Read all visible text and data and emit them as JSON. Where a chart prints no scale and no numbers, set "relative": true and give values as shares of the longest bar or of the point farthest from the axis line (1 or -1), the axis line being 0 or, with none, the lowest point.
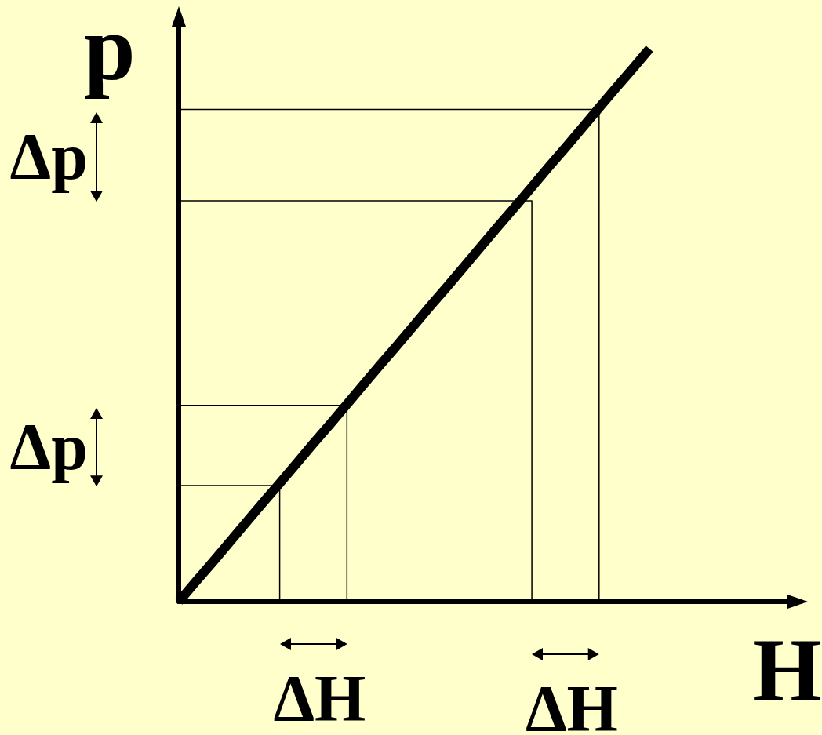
{
  "chart_data": {
    "type": "line",
    "relative": true,
    "xlabel": "H",
    "ylabel": "p",
    "marker": "none",
    "categories": [
      null,
      null,
      null,
      null,
      null,
      null,
      null,
      null,
      null,
      null,
      null,
      null,
      null,
      null,
      null,
      null,
      null,
      null,
      null,
      null,
      null,
      null,
      null,
      null,
      null,
      null,
      null,
      null,
      null,
      null,
      null,
      null,
      null,
      null,
      null,
      null,
      null,
      null
    ],
    "series": [
      {
        "color": "#000000",
        "values": [
          0,
          0.036,
          0.071,
          0.107,
          0.143,
          0.179,
          0.214,
          0.25,
          0.286,
          0.321,
          0.357,
          0.393,
          0.429,
          0.464,
          0.5,
          0.536,
          0.571,
          0.607,
          0.643,
          0.679,
          0.714,
          0.75,
          0.786,
          0.821,
          0.857,
          0.893,
          0.929,
          0.964,
          1,
          null,
          null,
          null,
          null,
          null,
          null,
          null,
          null,
          null
        ]
      },
      {
        "type": "step",
        "color": "#000000",
        "values": [
          0.21,
          0.21,
          0.21,
          0.21,
          0.21,
          0.21,
          0.21,
          0,
          null,
          null,
          null,
          null,
          null,
          null,
          null,
          null,
          null,
          null,
          null,
          null,
          null,
          null,
          null,
          null,
          null,
          null,
          null,
          null,
          null,
          null,
          null,
          null,
          null,
          null,
          null,
          null,
          null,
          null
        ]
      },
      {
        "type": "step",
        "color": "#000000",
        "values": [
          0.355,
          0.355,
          0.355,
          0.355,
          0.355,
          0.355,
          0.355,
          0.355,
          0.355,
          0.355,
          0.355,
          0,
          null,
          null,
          null,
          null,
          null,
          null,
          null,
          null,
          null,
          null,
          null,
          null,
          null,
          null,
          null,
          null,
          null,
          null,
          null,
          null,
          null,
          null,
          null,
          null,
          null,
          null
        ]
      },
      {
        "type": "step",
        "color": "#000000",
        "values": [
          0.725,
          0.725,
          0.725,
          0.725,
          0.725,
          0.725,
          0.725,
          0.725,
          0.725,
          0.725,
          0.725,
          0.725,
          0.725,
          0.725,
          0.725,
          0.725,
          0.725,
          0.725,
          0.725,
          0.725,
          0.725,
          0.725,
          0,
          null,
          null,
          null,
          null,
          null,
          null,
          null,
          null,
          null,
          null,
          null,
          null,
          null,
          null,
          null
        ]
      },
      {
        "type": "step",
        "color": "#000000",
        "values": [
          0.89,
          0.89,
          0.89,
          0.89,
          0.89,
          0.89,
          0.89,
          0.89,
          0.89,
          0.89,
          0.89,
          0.89,
          0.89,
          0.89,
          0.89,
          0.89,
          0.89,
          0.89,
          0.89,
          0.89,
          0.89,
          0.89,
          0.89,
          0.89,
          0.89,
          0.89,
          0,
          null,
          null,
          null,
          null,
          null,
          null,
          null,
          null,
          null,
          null,
          null
        ]
      }
    ],
    "annotations": [
      "Δp",
      "Δp",
      "ΔH",
      "ΔH"
    ]
  }
}
